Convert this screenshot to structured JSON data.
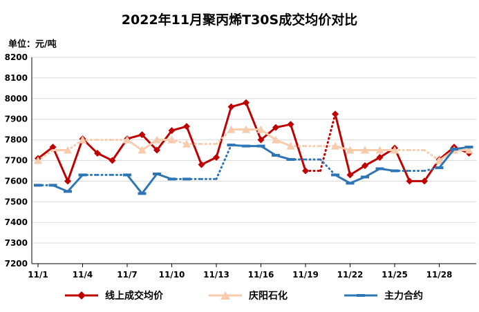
{
  "chart_data": {
    "type": "line",
    "title": "2022年11月聚丙烯T30S成交均价对比",
    "unit_label": "单位：元/吨",
    "xlabel": "",
    "ylabel": "",
    "ylim": [
      7200,
      8200
    ],
    "yticks": [
      "7200",
      "7300",
      "7400",
      "7500",
      "7600",
      "7700",
      "7800",
      "7900",
      "8000",
      "8100",
      "8200"
    ],
    "xticks": [
      {
        "day": 1,
        "label": "11/1"
      },
      {
        "day": 4,
        "label": "11/4"
      },
      {
        "day": 7,
        "label": "11/7"
      },
      {
        "day": 10,
        "label": "11/10"
      },
      {
        "day": 13,
        "label": "11/13"
      },
      {
        "day": 16,
        "label": "11/16"
      },
      {
        "day": 19,
        "label": "11/19"
      },
      {
        "day": 22,
        "label": "11/22"
      },
      {
        "day": 25,
        "label": "11/25"
      },
      {
        "day": 28,
        "label": "11/28"
      }
    ],
    "x_days": [
      1,
      2,
      3,
      4,
      5,
      6,
      7,
      8,
      9,
      10,
      11,
      12,
      13,
      14,
      15,
      16,
      17,
      18,
      19,
      20,
      21,
      22,
      23,
      24,
      25,
      26,
      27,
      28,
      29,
      30
    ],
    "grid": "horizontal",
    "legend_position": "bottom",
    "series": [
      {
        "name": "线上成交均价",
        "color": "#c00000",
        "marker": "diamond",
        "values": [
          7710,
          7765,
          7600,
          7805,
          7735,
          7700,
          7805,
          7825,
          7750,
          7845,
          7865,
          7680,
          7715,
          7960,
          7980,
          7800,
          7860,
          7875,
          7650,
          7650,
          7925,
          7630,
          7675,
          7715,
          7760,
          7600,
          7600,
          7705,
          7765,
          7735
        ]
      },
      {
        "name": "庆阳石化",
        "color": "#f8cbad",
        "marker": "triangle",
        "values": [
          7700,
          7750,
          7750,
          7800,
          7800,
          7800,
          7800,
          7750,
          7800,
          7800,
          7780,
          7780,
          7780,
          7850,
          7850,
          7850,
          7800,
          7770,
          7770,
          7770,
          7770,
          7750,
          7750,
          7750,
          7750,
          7750,
          7750,
          7700,
          7750,
          7750
        ]
      },
      {
        "name": "主力合约",
        "color": "#2e75b6",
        "marker": "dash",
        "values": [
          7580,
          7580,
          7550,
          7630,
          7630,
          7630,
          7630,
          7540,
          7635,
          7610,
          7610,
          7610,
          7610,
          7775,
          7770,
          7770,
          7725,
          7705,
          7705,
          7705,
          7630,
          7590,
          7620,
          7660,
          7650,
          7650,
          7650,
          7665,
          7755,
          7765
        ]
      }
    ]
  }
}
